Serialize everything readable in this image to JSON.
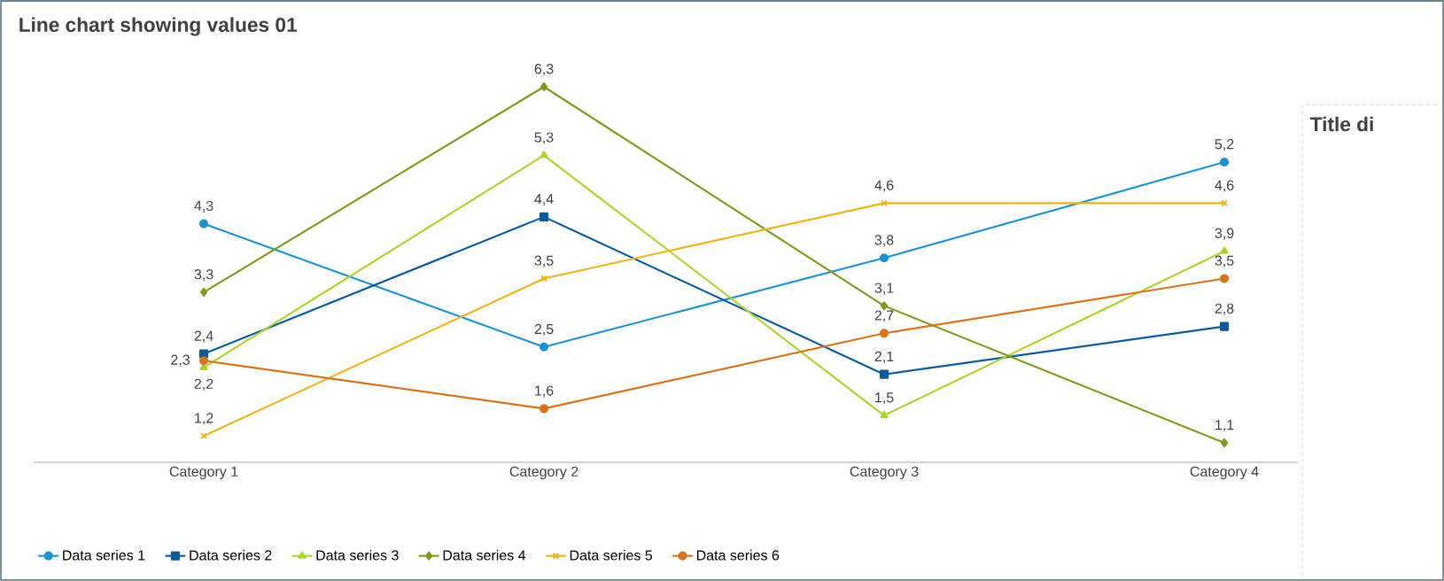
{
  "chart_data": {
    "type": "line",
    "title": "Line chart showing values 01",
    "categories": [
      "Category 1",
      "Category 2",
      "Category 3",
      "Category 4"
    ],
    "series": [
      {
        "name": "Data series 1",
        "color": "#1b93d0",
        "marker": "circle",
        "values": [
          4.3,
          2.5,
          3.8,
          5.2
        ],
        "value_labels": [
          "4,3",
          "2,5",
          "3,8",
          "5,2"
        ]
      },
      {
        "name": "Data series 2",
        "color": "#0b5a9c",
        "marker": "square",
        "values": [
          2.4,
          4.4,
          2.1,
          2.8
        ],
        "value_labels": [
          "2,4",
          "4,4",
          "2,1",
          "2,8"
        ]
      },
      {
        "name": "Data series 3",
        "color": "#a9d52b",
        "marker": "triangle",
        "values": [
          2.2,
          5.3,
          1.5,
          3.9
        ],
        "value_labels": [
          "2,2",
          "5,3",
          "1,5",
          "3,9"
        ]
      },
      {
        "name": "Data series 4",
        "color": "#7e9a1b",
        "marker": "diamond",
        "values": [
          3.3,
          6.3,
          3.1,
          1.1
        ],
        "value_labels": [
          "3,3",
          "6,3",
          "3,1",
          "1,1"
        ]
      },
      {
        "name": "Data series 5",
        "color": "#f0b21b",
        "marker": "cross",
        "values": [
          1.2,
          3.5,
          4.6,
          4.6
        ],
        "value_labels": [
          "1,2",
          "3,5",
          "4,6",
          "4,6"
        ]
      },
      {
        "name": "Data series 6",
        "color": "#d9731b",
        "marker": "circle",
        "values": [
          2.3,
          1.6,
          2.7,
          3.5
        ],
        "value_labels": [
          "2,3",
          "1,6",
          "2,7",
          "3,5"
        ]
      }
    ],
    "legend": "bottom left",
    "annotations": [
      "Title di"
    ]
  }
}
